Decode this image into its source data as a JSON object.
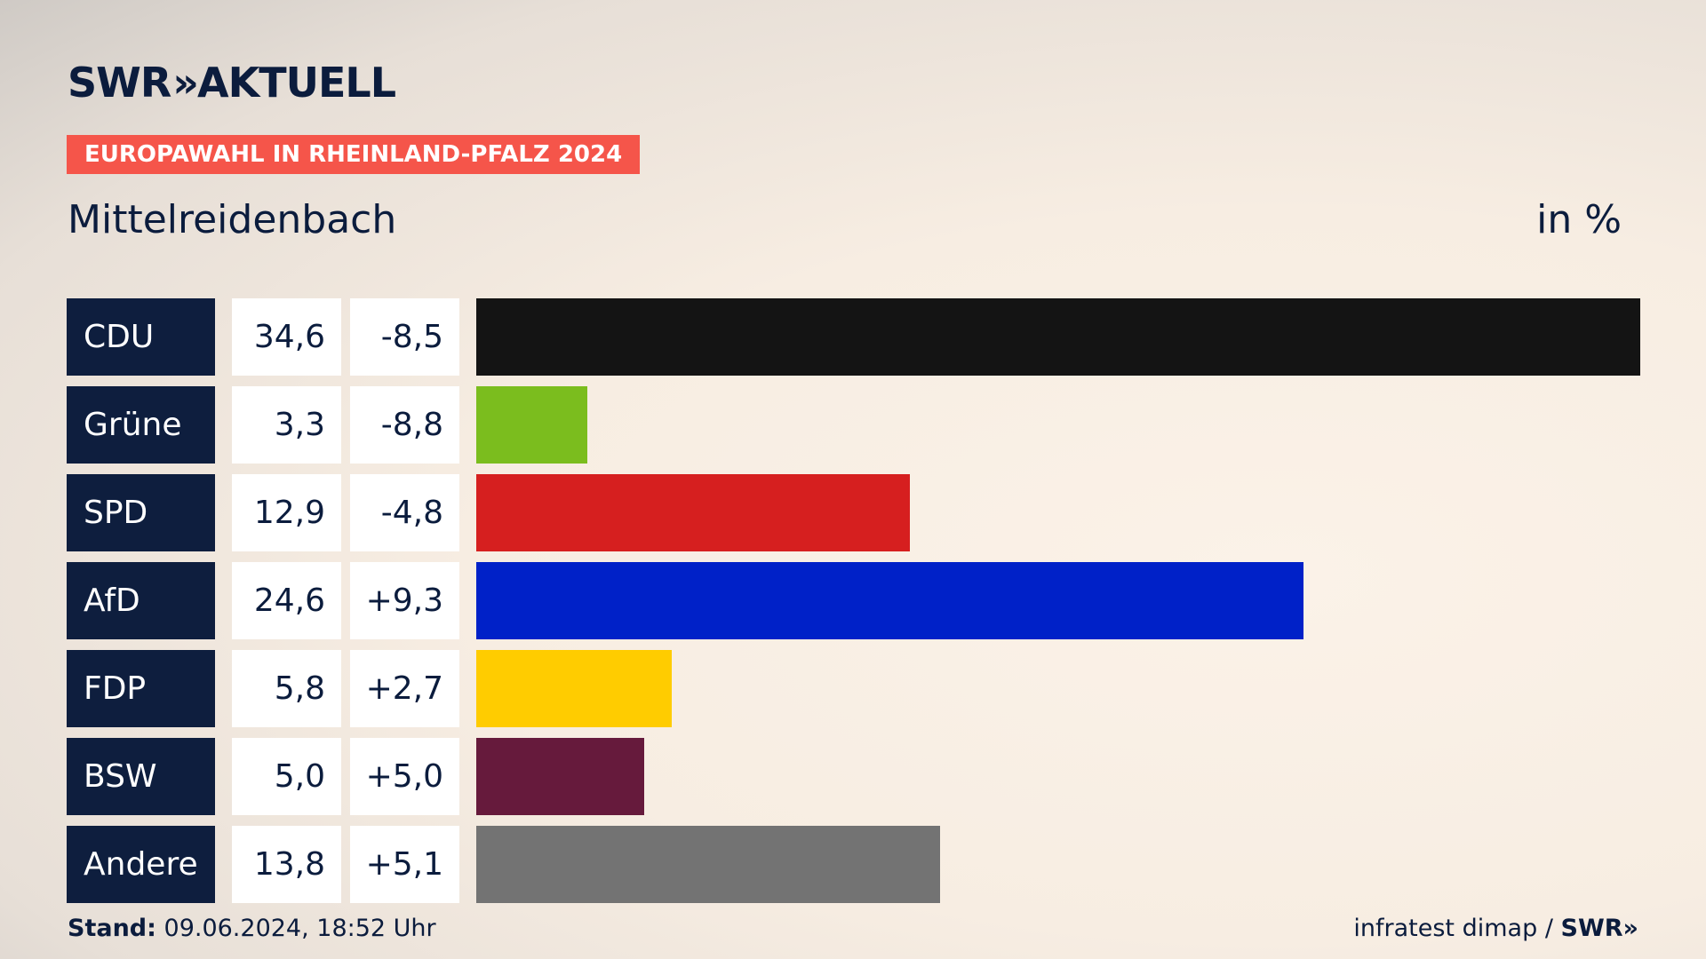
{
  "header": {
    "logo_text": "SWR",
    "logo_chevrons": "»",
    "logo_suffix": "AKTUELL",
    "banner": "EUROPAWAHL IN RHEINLAND-PFALZ 2024"
  },
  "chart_data": {
    "type": "bar",
    "title": "Mittelreidenbach",
    "unit": "in %",
    "categories": [
      "CDU",
      "Grüne",
      "SPD",
      "AfD",
      "FDP",
      "BSW",
      "Andere"
    ],
    "values": [
      34.6,
      3.3,
      12.9,
      24.6,
      5.8,
      5.0,
      13.8
    ],
    "value_labels": [
      "34,6",
      "3,3",
      "12,9",
      "24,6",
      "5,8",
      "5,0",
      "13,8"
    ],
    "diff_labels": [
      "-8,5",
      "-8,8",
      "-4,8",
      "+9,3",
      "+2,7",
      "+5,0",
      "+5,1"
    ],
    "colors": [
      "#141414",
      "#7bbd1e",
      "#d61f1f",
      "#0021c8",
      "#ffcc00",
      "#661a3c",
      "#737373"
    ]
  },
  "footer": {
    "stand_label": "Stand:",
    "stand_value": "09.06.2024, 18:52 Uhr",
    "source": "infratest dimap /",
    "brand": "SWR",
    "brand_chevrons": "»"
  }
}
